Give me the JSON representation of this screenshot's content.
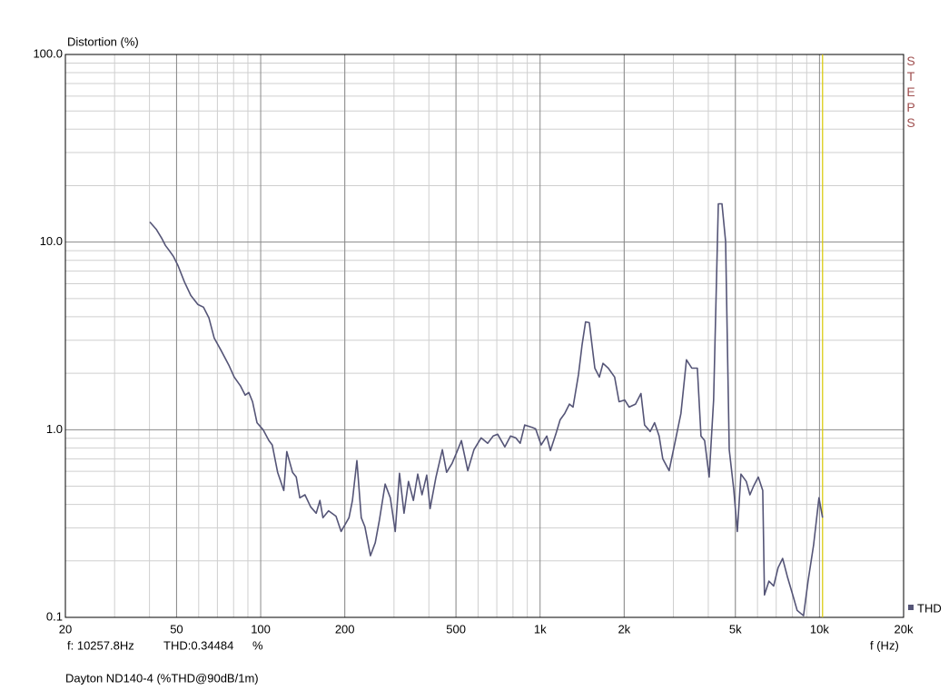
{
  "chart_data": {
    "type": "line",
    "y_label": "Distortion (%)",
    "x_label": "f (Hz)",
    "side_label": "STEPS",
    "footer": "Dayton ND140-4 (%THD@90dB/1m)",
    "log_x": true,
    "log_y": true,
    "grid": true,
    "legend": "bottom-right",
    "xlim": [
      20,
      20000
    ],
    "xticks": [
      20,
      50,
      100,
      200,
      500,
      {
        "value": 1000,
        "label": "1k"
      },
      {
        "value": 2000,
        "label": "2k"
      },
      {
        "value": 5000,
        "label": "5k"
      },
      {
        "value": 10000,
        "label": "10k"
      },
      {
        "value": 20000,
        "label": "20k"
      }
    ],
    "ylim": [
      0.1,
      100
    ],
    "yticks": [
      {
        "value": 100,
        "label": "100.0"
      },
      {
        "value": 10,
        "label": "10.0"
      },
      {
        "value": 1,
        "label": "1.0"
      },
      0.1
    ],
    "cursor": {
      "x": {
        "value": 10257.8,
        "label": "f: 10257.8Hz"
      },
      "y": {
        "value": 0.34484,
        "label": "THD:0.34484"
      },
      "unit": "%",
      "color": "#d8c800"
    },
    "x": [
      40.1,
      42.3,
      44.2,
      45.6,
      46.9,
      48.7,
      50.6,
      53.3,
      56.2,
      59.6,
      62.4,
      65.3,
      68.2,
      71.9,
      76.9,
      80.4,
      84.7,
      88,
      90.7,
      93.5,
      97,
      102,
      107,
      110,
      115,
      121,
      124,
      130,
      134,
      138,
      144,
      151,
      158,
      163,
      167,
      175,
      186,
      194,
      207,
      213,
      221,
      229,
      236,
      247,
      257,
      266,
      279,
      291,
      303,
      314,
      326,
      338,
      352,
      365,
      378,
      393,
      404,
      424,
      447,
      463,
      484,
      503,
      523,
      551,
      580,
      615,
      649,
      679,
      705,
      748,
      784,
      818,
      849,
      881,
      936,
      964,
      1009,
      1057,
      1089,
      1138,
      1180,
      1225,
      1273,
      1312,
      1372,
      1413,
      1455,
      1500,
      1570,
      1630,
      1679,
      1754,
      1849,
      1918,
      2009,
      2084,
      2196,
      2296,
      2366,
      2478,
      2570,
      2667,
      2748,
      2897,
      3027,
      3192,
      3342,
      3492,
      3656,
      3767,
      3882,
      4028,
      4178,
      4345,
      4477,
      4613,
      4753,
      4932,
      5082,
      5236,
      5470,
      5636,
      5808,
      6039,
      6266,
      6356,
      6592,
      6855,
      7112,
      7379,
      7674,
      8018,
      8318,
      8770,
      9100,
      9528,
      9960,
      10257
    ],
    "series": [
      {
        "name": "THD",
        "color": "#555577",
        "values": [
          12.8,
          11.7,
          10.5,
          9.6,
          9.08,
          8.4,
          7.5,
          6.15,
          5.2,
          4.65,
          4.5,
          3.94,
          3.08,
          2.67,
          2.21,
          1.91,
          1.71,
          1.53,
          1.58,
          1.41,
          1.09,
          1.0,
          0.875,
          0.83,
          0.593,
          0.474,
          0.765,
          0.593,
          0.56,
          0.434,
          0.45,
          0.388,
          0.359,
          0.42,
          0.34,
          0.37,
          0.346,
          0.287,
          0.34,
          0.42,
          0.685,
          0.34,
          0.304,
          0.213,
          0.25,
          0.33,
          0.513,
          0.434,
          0.287,
          0.586,
          0.359,
          0.53,
          0.42,
          0.58,
          0.45,
          0.573,
          0.38,
          0.56,
          0.783,
          0.593,
          0.662,
          0.757,
          0.875,
          0.605,
          0.783,
          0.905,
          0.846,
          0.925,
          0.946,
          0.81,
          0.925,
          0.905,
          0.846,
          1.06,
          1.03,
          1.01,
          0.83,
          0.925,
          0.774,
          0.946,
          1.13,
          1.22,
          1.37,
          1.32,
          1.97,
          2.82,
          3.76,
          3.72,
          2.13,
          1.91,
          2.26,
          2.13,
          1.91,
          1.41,
          1.44,
          1.32,
          1.37,
          1.56,
          1.06,
          0.978,
          1.09,
          0.925,
          0.7,
          0.605,
          0.83,
          1.22,
          2.36,
          2.13,
          2.13,
          0.925,
          0.875,
          0.56,
          1.44,
          16.0,
          16.0,
          10.1,
          0.783,
          0.485,
          0.287,
          0.58,
          0.53,
          0.45,
          0.5,
          0.56,
          0.474,
          0.1317,
          0.156,
          0.147,
          0.184,
          0.206,
          0.165,
          0.132,
          0.109,
          0.102,
          0.156,
          0.243,
          0.434,
          0.34
        ]
      }
    ]
  }
}
